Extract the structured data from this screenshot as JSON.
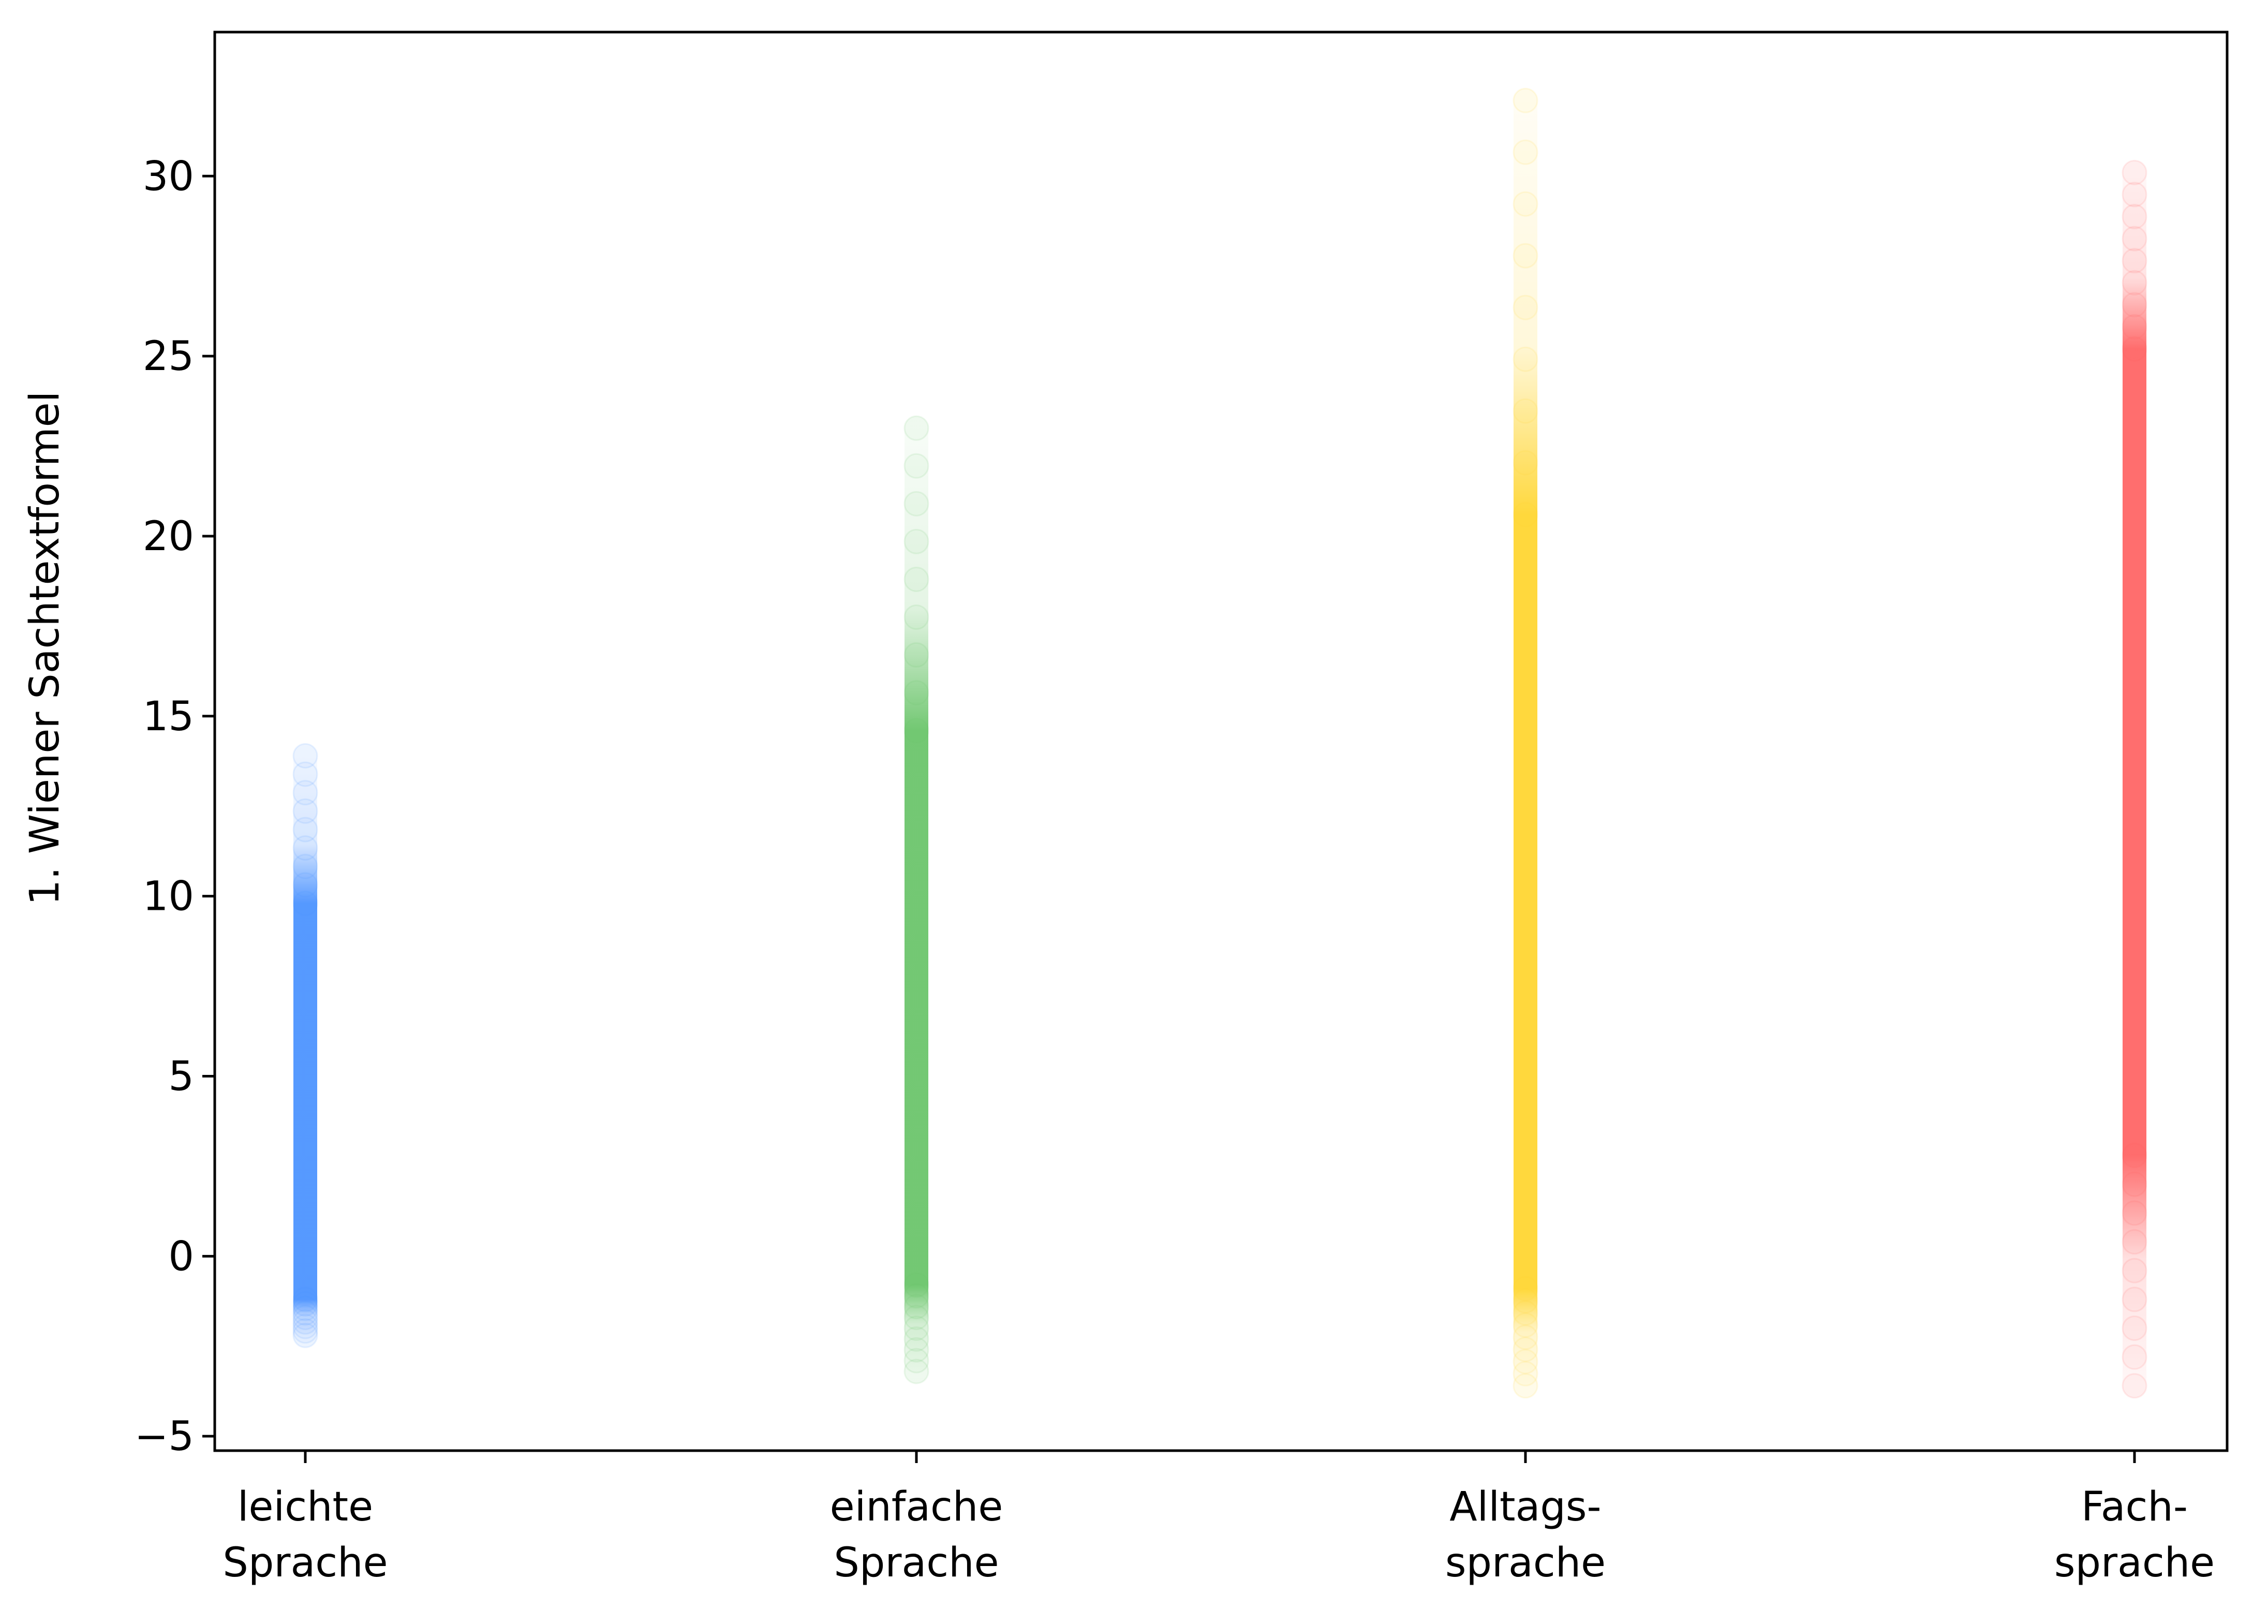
{
  "chart_data": {
    "type": "scatter",
    "title": "",
    "xlabel": "",
    "ylabel": "1. Wiener Sachtextformel",
    "ylim": [
      -5.4,
      34
    ],
    "yticks": [
      -5,
      0,
      5,
      10,
      15,
      20,
      25,
      30
    ],
    "ytick_labels": [
      "−5",
      "0",
      "5",
      "10",
      "15",
      "20",
      "25",
      "30"
    ],
    "grid": false,
    "categories": [
      [
        "leichte",
        "Sprache"
      ],
      [
        "einfache",
        "Sprache"
      ],
      [
        "Alltags-",
        "sprache"
      ],
      [
        "Fach-",
        "sprache"
      ]
    ],
    "series": [
      {
        "color": "#4d94ff",
        "dense": [
          -1.2,
          9.8
        ],
        "min": -2.2,
        "max": 13.9
      },
      {
        "color": "#6cc56c",
        "dense": [
          -0.8,
          14.6
        ],
        "min": -3.2,
        "max": 23.0
      },
      {
        "color": "#ffd633",
        "dense": [
          -0.9,
          20.6
        ],
        "min": -3.6,
        "max": 32.1
      },
      {
        "color": "#ff6666",
        "dense": [
          2.8,
          25.2
        ],
        "min": -3.6,
        "max": 30.1
      }
    ]
  }
}
